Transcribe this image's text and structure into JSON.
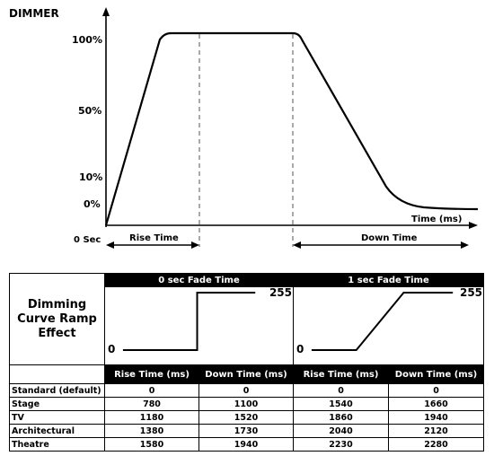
{
  "chart_data": {
    "type": "line",
    "title": "DIMMER",
    "xlabel": "Time (ms)",
    "y_ticks": [
      "100%",
      "50%",
      "10%",
      "0%"
    ],
    "x_origin_label": "0 Sec",
    "intervals": {
      "rise": "Rise Time",
      "down": "Down Time"
    }
  },
  "table": {
    "header_left_title": "Dimming Curve Ramp Effect",
    "fade_0_title": "0 sec Fade Time",
    "fade_1_title": "1 sec Fade Time",
    "curve_labels": {
      "low": "0",
      "high": "255"
    },
    "col_headers": [
      "Rise Time (ms)",
      "Down Time (ms)",
      "Rise Time (ms)",
      "Down Time (ms)"
    ],
    "rows": [
      {
        "name": "Standard (default)",
        "values": [
          "0",
          "0",
          "0",
          "0"
        ]
      },
      {
        "name": "Stage",
        "values": [
          "780",
          "1100",
          "1540",
          "1660"
        ]
      },
      {
        "name": "TV",
        "values": [
          "1180",
          "1520",
          "1860",
          "1940"
        ]
      },
      {
        "name": "Architectural",
        "values": [
          "1380",
          "1730",
          "2040",
          "2120"
        ]
      },
      {
        "name": "Theatre",
        "values": [
          "1580",
          "1940",
          "2230",
          "2280"
        ]
      }
    ]
  }
}
